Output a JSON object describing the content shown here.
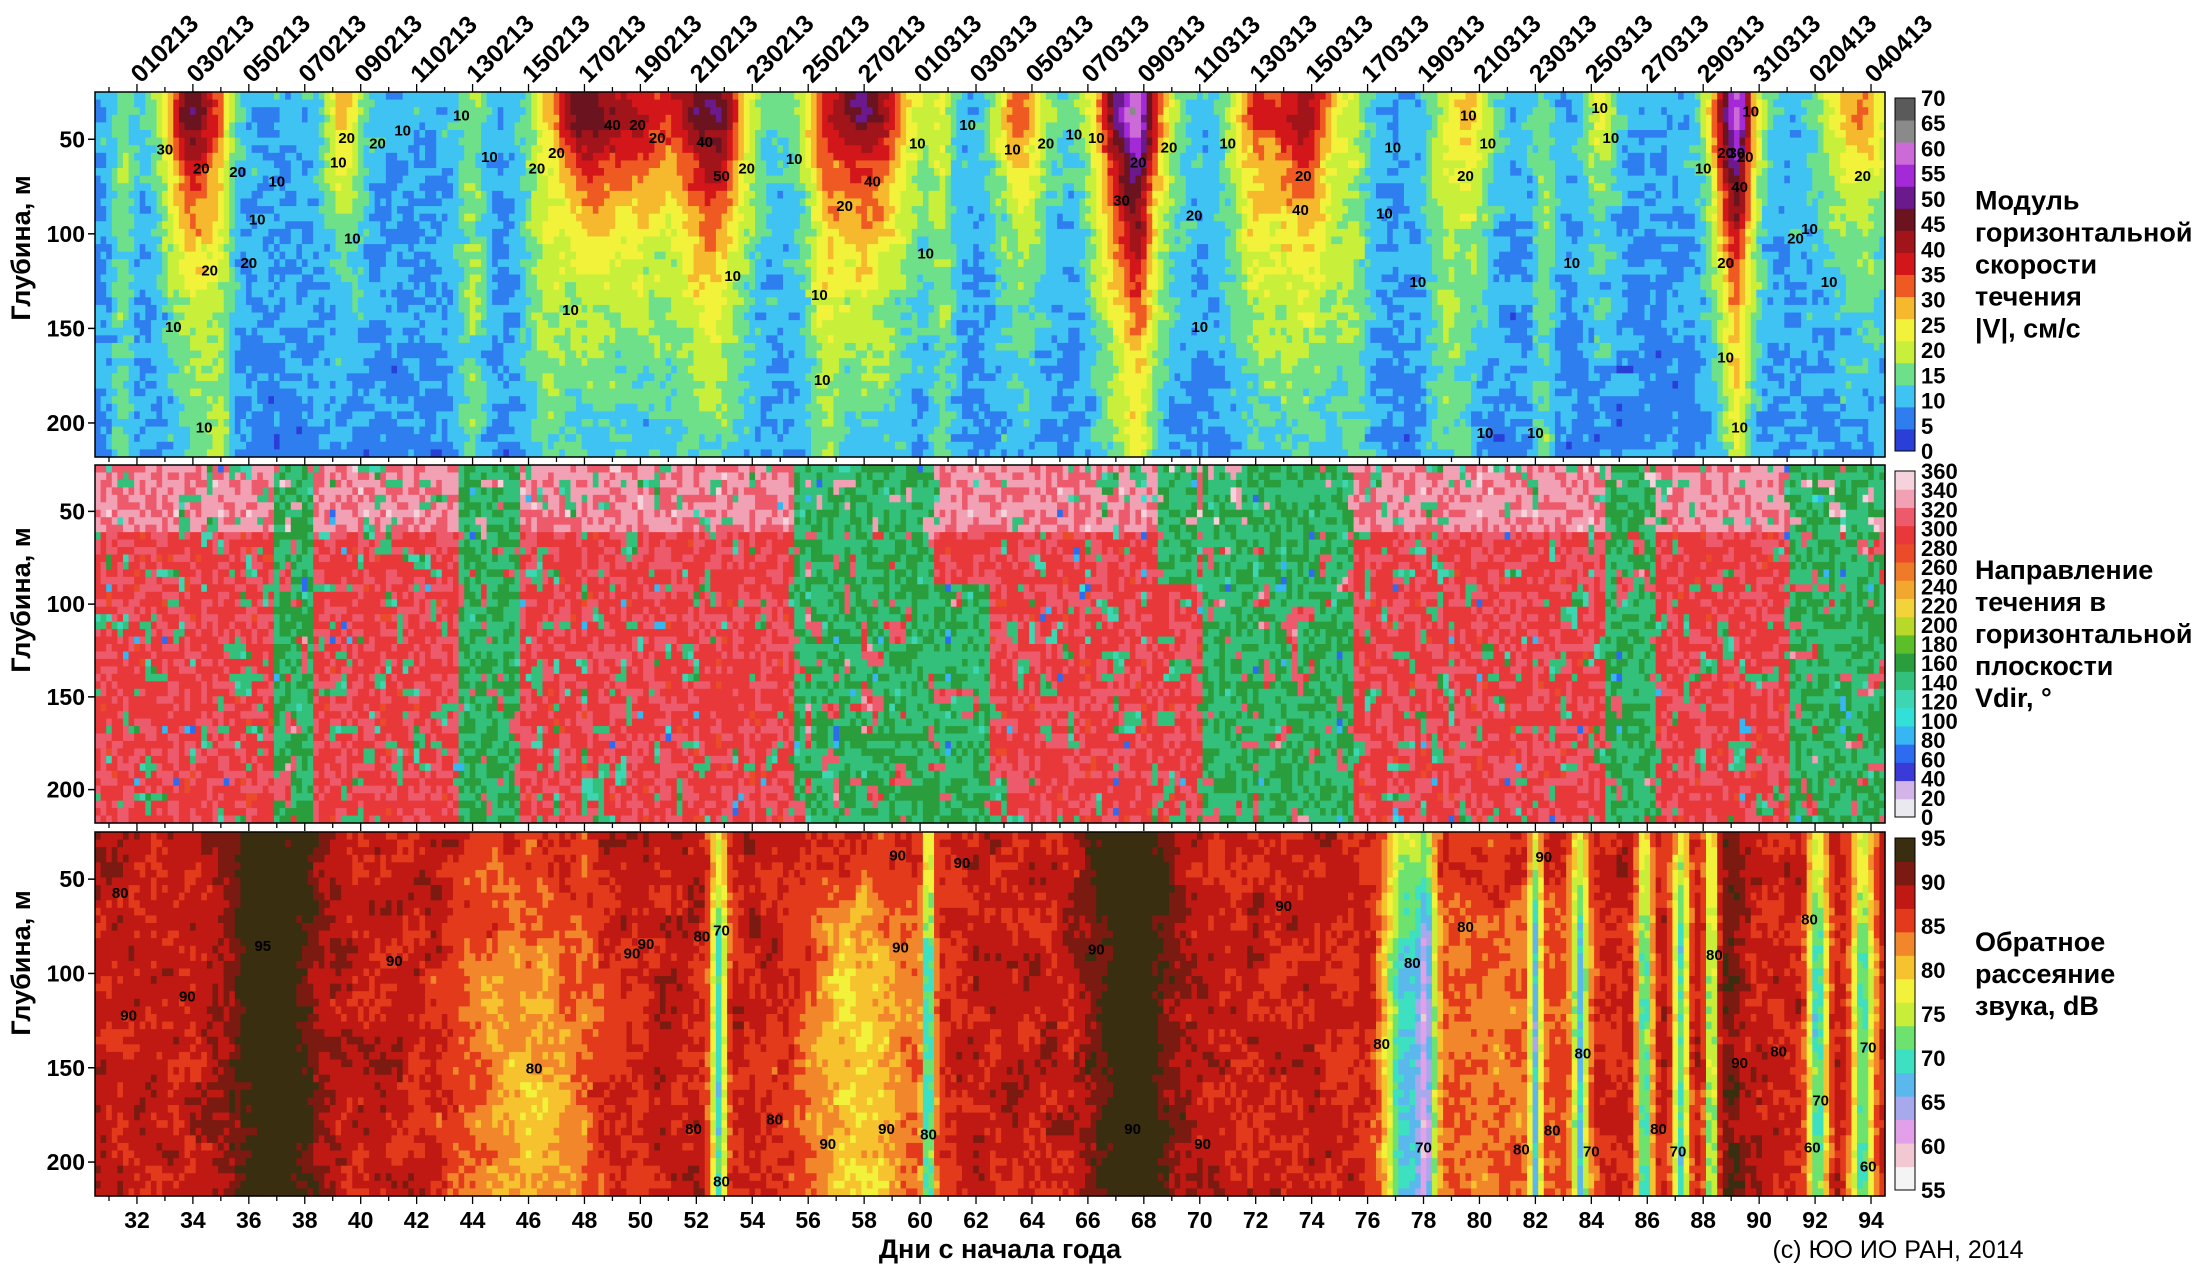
{
  "chart_data": {
    "type": "heatmap",
    "x_axis": {
      "label": "Дни с начала года",
      "range": [
        30.5,
        94.5
      ],
      "tick_values": [
        32,
        34,
        36,
        38,
        40,
        42,
        44,
        46,
        48,
        50,
        52,
        54,
        56,
        58,
        60,
        62,
        64,
        66,
        68,
        70,
        72,
        74,
        76,
        78,
        80,
        82,
        84,
        86,
        88,
        90,
        92,
        94
      ],
      "tick_labels": [
        "32",
        "34",
        "36",
        "38",
        "40",
        "42",
        "44",
        "46",
        "48",
        "50",
        "52",
        "54",
        "56",
        "58",
        "60",
        "62",
        "64",
        "66",
        "68",
        "70",
        "72",
        "74",
        "76",
        "78",
        "80",
        "82",
        "84",
        "86",
        "88",
        "90",
        "92",
        "94"
      ]
    },
    "date_labels": [
      "010213",
      "030213",
      "050213",
      "070213",
      "090213",
      "110213",
      "130213",
      "150213",
      "170213",
      "190213",
      "210213",
      "230213",
      "250213",
      "270213",
      "010313",
      "030313",
      "050313",
      "070313",
      "090313",
      "110313",
      "130313",
      "150313",
      "170313",
      "190313",
      "210313",
      "230313",
      "250313",
      "270313",
      "290313",
      "310313",
      "020413",
      "040413"
    ],
    "date_label_days": [
      32,
      34,
      36,
      38,
      40,
      42,
      44,
      46,
      48,
      50,
      52,
      54,
      56,
      58,
      60,
      62,
      64,
      66,
      68,
      70,
      72,
      74,
      76,
      78,
      80,
      82,
      84,
      86,
      88,
      90,
      92,
      94
    ],
    "y_axis": {
      "label": "Глубина, м",
      "range": [
        218,
        25
      ],
      "tick_values": [
        50,
        100,
        150,
        200
      ],
      "tick_labels": [
        "50",
        "100",
        "150",
        "200"
      ]
    },
    "panels": [
      {
        "id": "speed",
        "colorbar_title": [
          "Модуль",
          "горизонтальной",
          "скорости",
          "течения",
          "|V|, см/с"
        ],
        "colorbar_ticks": [
          "0",
          "5",
          "10",
          "15",
          "20",
          "25",
          "30",
          "35",
          "40",
          "45",
          "50",
          "55",
          "60",
          "65",
          "70"
        ],
        "value_range": [
          0,
          70
        ],
        "colors": [
          "#2a3fd8",
          "#2f7ef0",
          "#3ec3f2",
          "#6fe08a",
          "#c8f03a",
          "#f2f23a",
          "#f6b92e",
          "#ef5a23",
          "#d3161a",
          "#a0141a",
          "#6b1420",
          "#6a1a8c",
          "#a42ad8",
          "#cc6ad8",
          "#8a8a8a",
          "#5a5a5a"
        ],
        "contour_labels": [
          {
            "day": 33.0,
            "depth": 58,
            "text": "30"
          },
          {
            "day": 34.3,
            "depth": 68,
            "text": "20"
          },
          {
            "day": 35.6,
            "depth": 70,
            "text": "20"
          },
          {
            "day": 36.3,
            "depth": 95,
            "text": "10"
          },
          {
            "day": 34.6,
            "depth": 122,
            "text": "20"
          },
          {
            "day": 36.0,
            "depth": 118,
            "text": "20"
          },
          {
            "day": 33.3,
            "depth": 152,
            "text": "10"
          },
          {
            "day": 34.4,
            "depth": 205,
            "text": "10"
          },
          {
            "day": 37.0,
            "depth": 75,
            "text": "10"
          },
          {
            "day": 39.5,
            "depth": 52,
            "text": "20"
          },
          {
            "day": 39.2,
            "depth": 65,
            "text": "10"
          },
          {
            "day": 39.7,
            "depth": 105,
            "text": "10"
          },
          {
            "day": 40.6,
            "depth": 55,
            "text": "20"
          },
          {
            "day": 41.5,
            "depth": 48,
            "text": "10"
          },
          {
            "day": 43.6,
            "depth": 40,
            "text": "10"
          },
          {
            "day": 44.6,
            "depth": 62,
            "text": "10"
          },
          {
            "day": 46.3,
            "depth": 68,
            "text": "20"
          },
          {
            "day": 47.0,
            "depth": 60,
            "text": "20"
          },
          {
            "day": 47.5,
            "depth": 143,
            "text": "10"
          },
          {
            "day": 49.0,
            "depth": 45,
            "text": "40"
          },
          {
            "day": 49.9,
            "depth": 45,
            "text": "20"
          },
          {
            "day": 50.6,
            "depth": 52,
            "text": "20"
          },
          {
            "day": 52.3,
            "depth": 54,
            "text": "40"
          },
          {
            "day": 52.9,
            "depth": 72,
            "text": "50"
          },
          {
            "day": 53.8,
            "depth": 68,
            "text": "20"
          },
          {
            "day": 53.3,
            "depth": 125,
            "text": "10"
          },
          {
            "day": 55.5,
            "depth": 63,
            "text": "10"
          },
          {
            "day": 56.4,
            "depth": 135,
            "text": "10"
          },
          {
            "day": 56.5,
            "depth": 180,
            "text": "10"
          },
          {
            "day": 58.3,
            "depth": 75,
            "text": "40"
          },
          {
            "day": 57.3,
            "depth": 88,
            "text": "20"
          },
          {
            "day": 59.9,
            "depth": 55,
            "text": "10"
          },
          {
            "day": 60.2,
            "depth": 113,
            "text": "10"
          },
          {
            "day": 61.7,
            "depth": 45,
            "text": "10"
          },
          {
            "day": 63.3,
            "depth": 58,
            "text": "10"
          },
          {
            "day": 64.5,
            "depth": 55,
            "text": "20"
          },
          {
            "day": 65.5,
            "depth": 50,
            "text": "10"
          },
          {
            "day": 66.3,
            "depth": 52,
            "text": "10"
          },
          {
            "day": 67.2,
            "depth": 85,
            "text": "30"
          },
          {
            "day": 67.8,
            "depth": 65,
            "text": "20"
          },
          {
            "day": 68.9,
            "depth": 57,
            "text": "20"
          },
          {
            "day": 69.8,
            "depth": 93,
            "text": "20"
          },
          {
            "day": 71.0,
            "depth": 55,
            "text": "10"
          },
          {
            "day": 70.0,
            "depth": 152,
            "text": "10"
          },
          {
            "day": 73.7,
            "depth": 72,
            "text": "20"
          },
          {
            "day": 73.6,
            "depth": 90,
            "text": "40"
          },
          {
            "day": 76.6,
            "depth": 92,
            "text": "10"
          },
          {
            "day": 76.9,
            "depth": 57,
            "text": "10"
          },
          {
            "day": 77.8,
            "depth": 128,
            "text": "10"
          },
          {
            "day": 79.6,
            "depth": 40,
            "text": "10"
          },
          {
            "day": 79.5,
            "depth": 72,
            "text": "20"
          },
          {
            "day": 80.3,
            "depth": 55,
            "text": "10"
          },
          {
            "day": 80.2,
            "depth": 208,
            "text": "10"
          },
          {
            "day": 82.0,
            "depth": 208,
            "text": "10"
          },
          {
            "day": 83.3,
            "depth": 118,
            "text": "10"
          },
          {
            "day": 84.3,
            "depth": 36,
            "text": "10"
          },
          {
            "day": 84.7,
            "depth": 52,
            "text": "10"
          },
          {
            "day": 88.0,
            "depth": 68,
            "text": "10"
          },
          {
            "day": 88.8,
            "depth": 60,
            "text": "20"
          },
          {
            "day": 89.2,
            "depth": 60,
            "text": "30"
          },
          {
            "day": 89.3,
            "depth": 78,
            "text": "40"
          },
          {
            "day": 89.7,
            "depth": 38,
            "text": "10"
          },
          {
            "day": 89.5,
            "depth": 62,
            "text": "20"
          },
          {
            "day": 88.8,
            "depth": 118,
            "text": "20"
          },
          {
            "day": 88.8,
            "depth": 168,
            "text": "10"
          },
          {
            "day": 89.3,
            "depth": 205,
            "text": "10"
          },
          {
            "day": 91.3,
            "depth": 105,
            "text": "20"
          },
          {
            "day": 91.8,
            "depth": 100,
            "text": "10"
          },
          {
            "day": 92.5,
            "depth": 128,
            "text": "10"
          },
          {
            "day": 93.7,
            "depth": 72,
            "text": "20"
          }
        ]
      },
      {
        "id": "direction",
        "colorbar_title": [
          "Направление",
          "течения в",
          "горизонтальной",
          "плоскости",
          "Vdir, °"
        ],
        "colorbar_ticks": [
          "0",
          "20",
          "40",
          "60",
          "80",
          "100",
          "120",
          "140",
          "160",
          "180",
          "200",
          "220",
          "240",
          "260",
          "280",
          "300",
          "320",
          "340",
          "360"
        ],
        "value_range": [
          0,
          360
        ],
        "colors": [
          "#e9e9ef",
          "#d2b4e8",
          "#3a3ad8",
          "#2d6cf0",
          "#36b6f2",
          "#33e0d8",
          "#3ed6b2",
          "#32c07a",
          "#2a9e3c",
          "#5cbf2a",
          "#b8d82a",
          "#f2d43a",
          "#f2a82e",
          "#ef7a28",
          "#ec4b2a",
          "#e8383a",
          "#ec5a6c",
          "#f2a0b4",
          "#f5d2dc"
        ],
        "contour_labels": []
      },
      {
        "id": "backscatter",
        "colorbar_title": [
          "Обратное",
          "рассеяние",
          "звука, dB"
        ],
        "colorbar_ticks": [
          "55",
          "60",
          "65",
          "70",
          "75",
          "80",
          "85",
          "90",
          "95"
        ],
        "value_range": [
          55,
          95
        ],
        "colors": [
          "#f4f4f4",
          "#f2c8d2",
          "#e2a0e8",
          "#a8a8ec",
          "#5ab8ec",
          "#3ee0c2",
          "#6ee26e",
          "#c8ee3a",
          "#f2f23a",
          "#f6c22e",
          "#f2862a",
          "#e43a1c",
          "#c01812",
          "#7a1a10",
          "#3a2e10"
        ],
        "contour_labels": [
          {
            "day": 31.4,
            "depth": 60,
            "text": "80"
          },
          {
            "day": 31.7,
            "depth": 125,
            "text": "90"
          },
          {
            "day": 33.8,
            "depth": 115,
            "text": "90"
          },
          {
            "day": 36.5,
            "depth": 88,
            "text": "95"
          },
          {
            "day": 41.2,
            "depth": 96,
            "text": "90"
          },
          {
            "day": 46.2,
            "depth": 153,
            "text": "80"
          },
          {
            "day": 49.7,
            "depth": 92,
            "text": "90"
          },
          {
            "day": 50.2,
            "depth": 87,
            "text": "90"
          },
          {
            "day": 52.9,
            "depth": 80,
            "text": "70"
          },
          {
            "day": 52.2,
            "depth": 83,
            "text": "80"
          },
          {
            "day": 51.9,
            "depth": 185,
            "text": "80"
          },
          {
            "day": 52.9,
            "depth": 213,
            "text": "80"
          },
          {
            "day": 54.8,
            "depth": 180,
            "text": "80"
          },
          {
            "day": 56.7,
            "depth": 193,
            "text": "90"
          },
          {
            "day": 59.2,
            "depth": 40,
            "text": "90"
          },
          {
            "day": 61.5,
            "depth": 44,
            "text": "90"
          },
          {
            "day": 59.3,
            "depth": 89,
            "text": "90"
          },
          {
            "day": 58.8,
            "depth": 185,
            "text": "90"
          },
          {
            "day": 60.3,
            "depth": 188,
            "text": "80"
          },
          {
            "day": 66.3,
            "depth": 90,
            "text": "90"
          },
          {
            "day": 67.6,
            "depth": 185,
            "text": "90"
          },
          {
            "day": 70.1,
            "depth": 193,
            "text": "90"
          },
          {
            "day": 73.0,
            "depth": 67,
            "text": "90"
          },
          {
            "day": 76.5,
            "depth": 140,
            "text": "80"
          },
          {
            "day": 77.6,
            "depth": 97,
            "text": "80"
          },
          {
            "day": 78.0,
            "depth": 195,
            "text": "70"
          },
          {
            "day": 79.5,
            "depth": 78,
            "text": "80"
          },
          {
            "day": 81.5,
            "depth": 196,
            "text": "80"
          },
          {
            "day": 82.6,
            "depth": 186,
            "text": "80"
          },
          {
            "day": 82.3,
            "depth": 41,
            "text": "90"
          },
          {
            "day": 83.7,
            "depth": 145,
            "text": "80"
          },
          {
            "day": 84.0,
            "depth": 197,
            "text": "70"
          },
          {
            "day": 86.4,
            "depth": 185,
            "text": "80"
          },
          {
            "day": 87.1,
            "depth": 197,
            "text": "70"
          },
          {
            "day": 88.4,
            "depth": 93,
            "text": "80"
          },
          {
            "day": 89.3,
            "depth": 150,
            "text": "90"
          },
          {
            "day": 90.7,
            "depth": 144,
            "text": "80"
          },
          {
            "day": 91.9,
            "depth": 195,
            "text": "60"
          },
          {
            "day": 91.8,
            "depth": 74,
            "text": "80"
          },
          {
            "day": 92.2,
            "depth": 170,
            "text": "70"
          },
          {
            "day": 93.9,
            "depth": 142,
            "text": "70"
          },
          {
            "day": 93.9,
            "depth": 205,
            "text": "60"
          }
        ]
      }
    ]
  },
  "footer": {
    "copyright": "(с) ЮО ИО РАН, 2014"
  },
  "icons": {
    "colorbar": "colorbar-legend"
  }
}
